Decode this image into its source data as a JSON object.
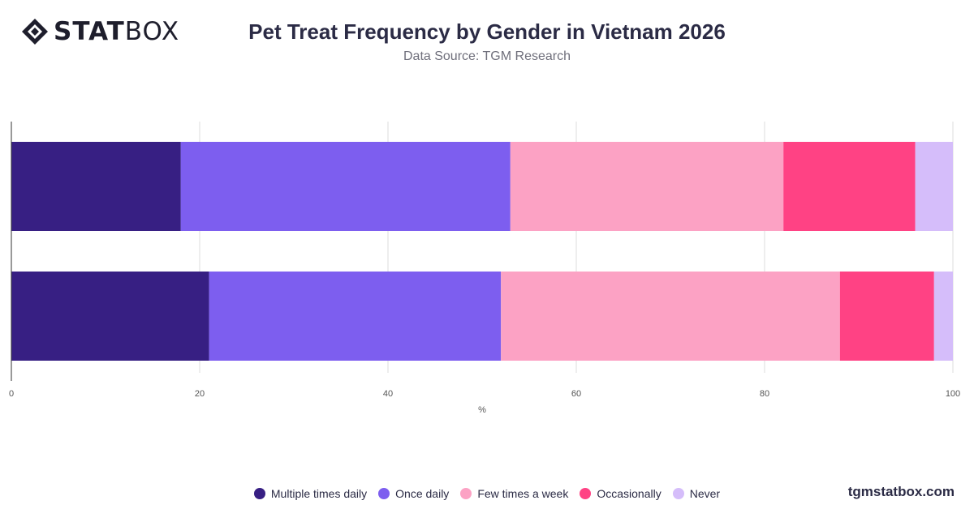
{
  "header": {
    "logo_bold": "STAT",
    "logo_light": "BOX",
    "title": "Pet Treat Frequency by Gender in Vietnam 2026",
    "subtitle": "Data Source: TGM Research"
  },
  "footer": {
    "watermark": "tgmstatbox.com"
  },
  "chart_data": {
    "type": "bar",
    "orientation": "horizontal",
    "stacked": true,
    "categories": [
      "",
      ""
    ],
    "series": [
      {
        "name": "Multiple times daily",
        "color": "#371f83",
        "values": [
          18,
          21
        ]
      },
      {
        "name": "Once daily",
        "color": "#7d5eef",
        "values": [
          35,
          31
        ]
      },
      {
        "name": "Few times a week",
        "color": "#fca2c4",
        "values": [
          29,
          36
        ]
      },
      {
        "name": "Occasionally",
        "color": "#ff4284",
        "values": [
          14,
          10
        ]
      },
      {
        "name": "Never",
        "color": "#d5bdfa",
        "values": [
          4,
          2
        ]
      }
    ],
    "xlabel": "%",
    "ylabel": "",
    "xlim": [
      0,
      100
    ],
    "xticks": [
      0,
      20,
      40,
      60,
      80,
      100
    ],
    "grid": true,
    "legend_position": "bottom"
  }
}
